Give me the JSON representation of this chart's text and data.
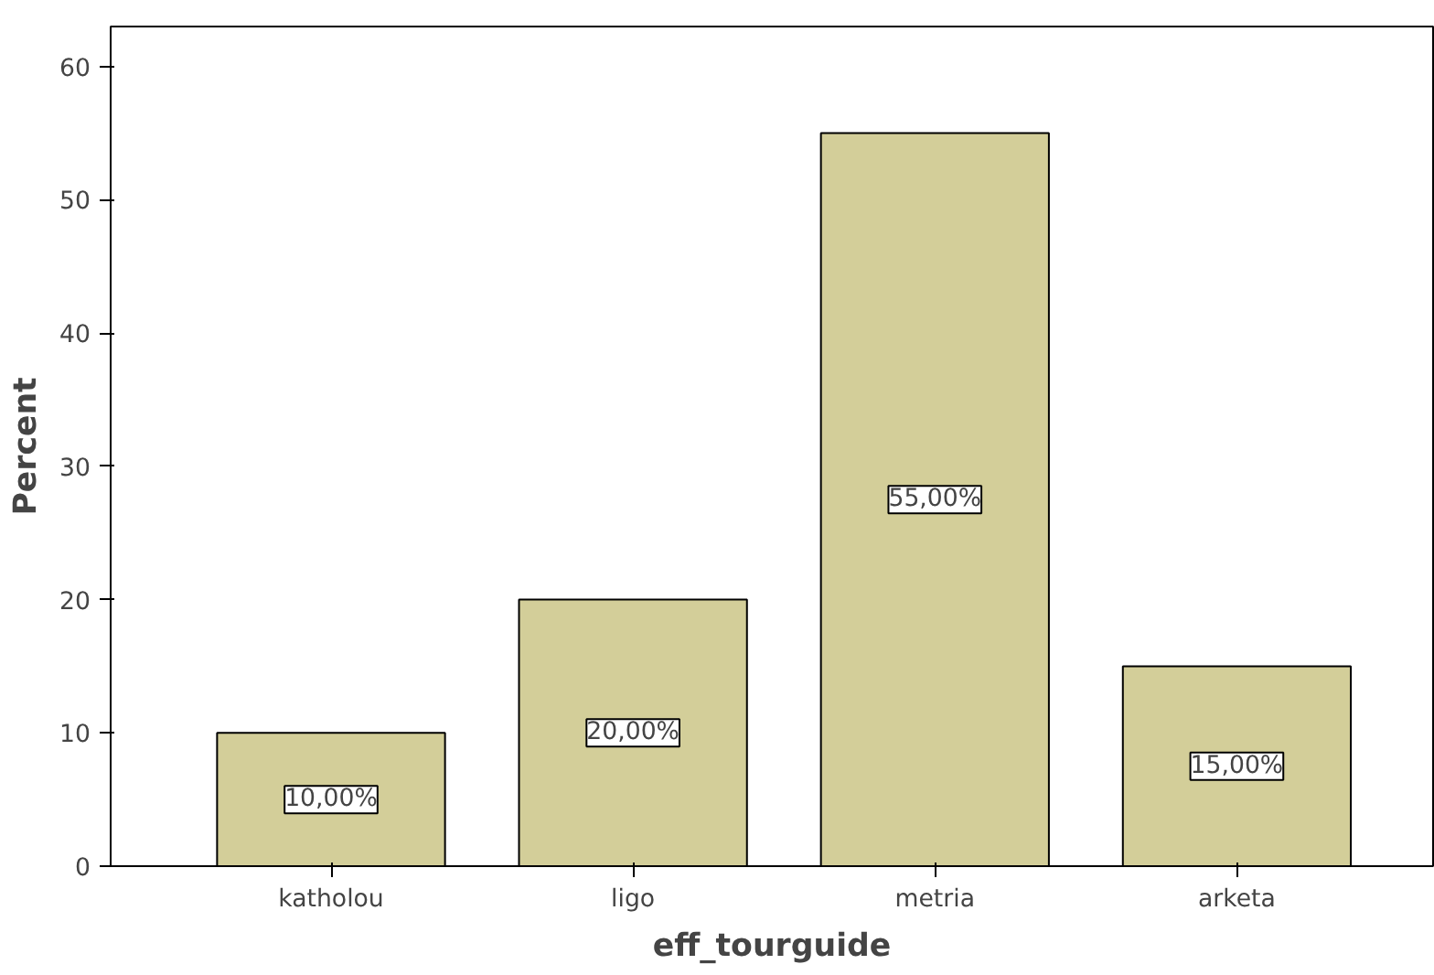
{
  "chart_data": {
    "type": "bar",
    "xlabel": "eff_tourguide",
    "ylabel": "Percent",
    "categories": [
      "katholou",
      "ligo",
      "metria",
      "arketa"
    ],
    "values": [
      10,
      20,
      55,
      15
    ],
    "value_labels": [
      "10,00%",
      "20,00%",
      "55,00%",
      "15,00%"
    ],
    "color": "#d3ce99",
    "ylim": [
      0,
      63
    ],
    "yticks": [
      0,
      10,
      20,
      30,
      40,
      50,
      60
    ],
    "grid": false
  }
}
